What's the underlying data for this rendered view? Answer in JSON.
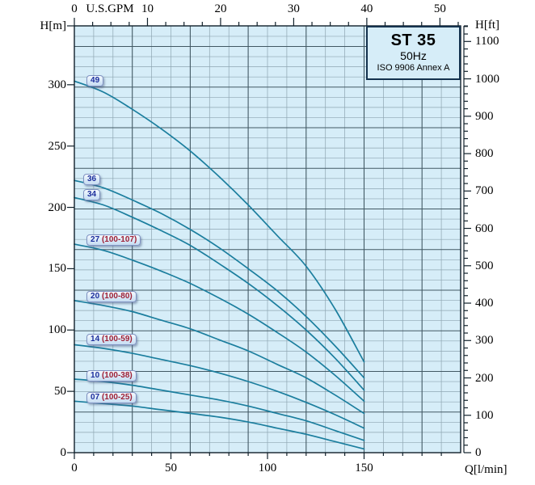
{
  "title_box": {
    "model": "ST 35",
    "frequency": "50Hz",
    "standard": "ISO 9906 Annex A"
  },
  "colors": {
    "plot_bg": "#d6edf8",
    "grid_minor": "#8ea6b2",
    "grid_major": "#425964",
    "curve": "#1b7e9e",
    "axis": "#10202a",
    "label_num": "#1c2e9c",
    "label_suffix": "#9e1f35",
    "title_border": "#14324e"
  },
  "chart_data": {
    "type": "line",
    "title": "ST 35 50Hz pump performance curves (Head vs Flow)",
    "x_bottom": {
      "label": "Q[l/min]",
      "range": [
        0,
        200
      ],
      "major_ticks": [
        0,
        50,
        100,
        150
      ],
      "minor_step": 10
    },
    "x_top": {
      "label": "U.S.GPM",
      "range_gpm": [
        0,
        52.8
      ],
      "major_ticks": [
        0,
        10,
        20,
        30,
        40,
        50
      ],
      "minor_step": 2.5,
      "gpm_to_lmin": 3.78541
    },
    "y_left": {
      "label": "H[m]",
      "range": [
        0,
        348
      ],
      "major_ticks": [
        0,
        50,
        100,
        150,
        200,
        250,
        300
      ]
    },
    "y_right": {
      "label": "H[ft]",
      "major_ticks": [
        0,
        100,
        200,
        300,
        400,
        500,
        600,
        700,
        800,
        900,
        1000,
        1100
      ],
      "minor_step": 20,
      "ft_per_m": 3.28084
    },
    "grid": {
      "x_minor_step": 10,
      "x_major_step": 30,
      "y_minor_step": 8.28,
      "y_major_every": 4
    },
    "legend_position": "labels-on-curves",
    "series": [
      {
        "label_num": "49",
        "label_suffix": "",
        "label_anchor": [
          6.3,
          303.2
        ],
        "points": [
          [
            0,
            303
          ],
          [
            15,
            294
          ],
          [
            30,
            280
          ],
          [
            45,
            264
          ],
          [
            60,
            246
          ],
          [
            75,
            225
          ],
          [
            90,
            202
          ],
          [
            105,
            177
          ],
          [
            120,
            152
          ],
          [
            135,
            117
          ],
          [
            150,
            74
          ]
        ]
      },
      {
        "label_num": "36",
        "label_suffix": "",
        "label_anchor": [
          4.6,
          222.8
        ],
        "points": [
          [
            0,
            222
          ],
          [
            15,
            216
          ],
          [
            30,
            206
          ],
          [
            45,
            195
          ],
          [
            60,
            182
          ],
          [
            75,
            167
          ],
          [
            90,
            150
          ],
          [
            105,
            132
          ],
          [
            120,
            111
          ],
          [
            135,
            87
          ],
          [
            150,
            61
          ]
        ]
      },
      {
        "label_num": "34",
        "label_suffix": "",
        "label_anchor": [
          4.6,
          210.3
        ],
        "points": [
          [
            0,
            208
          ],
          [
            15,
            202
          ],
          [
            30,
            192
          ],
          [
            45,
            181
          ],
          [
            60,
            169
          ],
          [
            75,
            154
          ],
          [
            90,
            138
          ],
          [
            105,
            120
          ],
          [
            120,
            100
          ],
          [
            135,
            77
          ],
          [
            150,
            51
          ]
        ]
      },
      {
        "label_num": "27",
        "label_suffix": " (100-107)",
        "label_anchor": [
          6.3,
          173.4
        ],
        "points": [
          [
            0,
            170
          ],
          [
            15,
            165
          ],
          [
            30,
            157
          ],
          [
            45,
            148
          ],
          [
            60,
            138
          ],
          [
            75,
            126
          ],
          [
            90,
            113
          ],
          [
            105,
            98
          ],
          [
            120,
            82
          ],
          [
            135,
            63
          ],
          [
            150,
            42
          ]
        ]
      },
      {
        "label_num": "20",
        "label_suffix": " (100-80)",
        "label_anchor": [
          6.3,
          127.2
        ],
        "points": [
          [
            0,
            124
          ],
          [
            15,
            120
          ],
          [
            30,
            115
          ],
          [
            45,
            108
          ],
          [
            60,
            101
          ],
          [
            75,
            92
          ],
          [
            90,
            83
          ],
          [
            105,
            72
          ],
          [
            120,
            61
          ],
          [
            135,
            47
          ],
          [
            150,
            32
          ]
        ]
      },
      {
        "label_num": "14",
        "label_suffix": " (100-59)",
        "label_anchor": [
          6.3,
          92.3
        ],
        "points": [
          [
            0,
            88
          ],
          [
            15,
            85
          ],
          [
            30,
            81
          ],
          [
            45,
            76
          ],
          [
            60,
            71
          ],
          [
            75,
            65
          ],
          [
            90,
            58
          ],
          [
            105,
            50
          ],
          [
            120,
            41
          ],
          [
            135,
            31
          ],
          [
            150,
            20
          ]
        ]
      },
      {
        "label_num": "10",
        "label_suffix": " (100-38)",
        "label_anchor": [
          6.3,
          62.6
        ],
        "points": [
          [
            0,
            60
          ],
          [
            15,
            58
          ],
          [
            30,
            55
          ],
          [
            45,
            51
          ],
          [
            60,
            47
          ],
          [
            75,
            43
          ],
          [
            90,
            38
          ],
          [
            105,
            32
          ],
          [
            120,
            26
          ],
          [
            135,
            18
          ],
          [
            150,
            10
          ]
        ]
      },
      {
        "label_num": "07",
        "label_suffix": " (100-25)",
        "label_anchor": [
          6.3,
          44.8
        ],
        "points": [
          [
            0,
            42
          ],
          [
            15,
            40
          ],
          [
            30,
            38
          ],
          [
            45,
            35
          ],
          [
            60,
            32
          ],
          [
            75,
            29
          ],
          [
            90,
            25
          ],
          [
            105,
            20
          ],
          [
            120,
            15
          ],
          [
            135,
            9
          ],
          [
            150,
            3
          ]
        ]
      }
    ]
  }
}
